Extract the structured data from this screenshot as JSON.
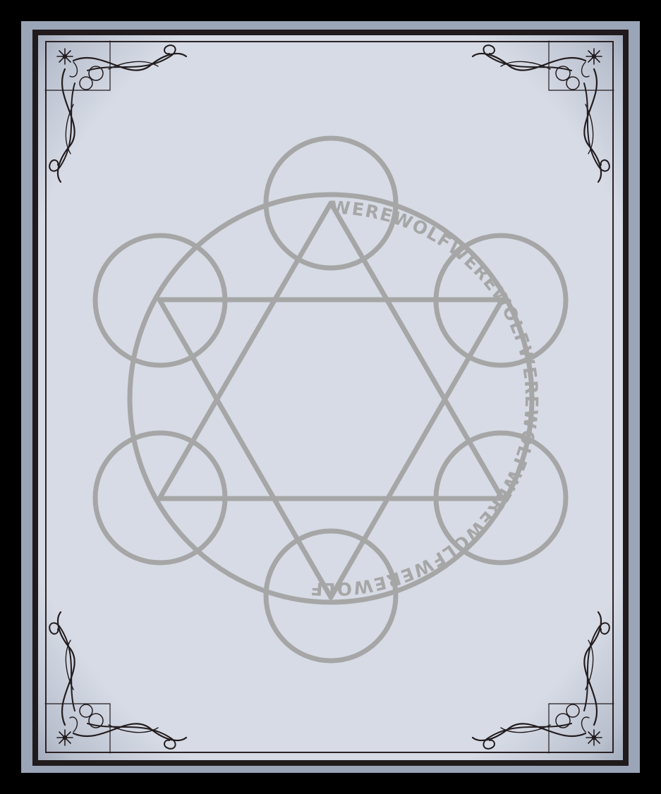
{
  "card": {
    "ring_text": "WEREWOLFWEREWOLFWEREWOLFWEREWOLFWEREWOLF",
    "emblem": "hexagram-magic-circle",
    "corner_ornament": "flourish-ornament-icon"
  },
  "colors": {
    "background": "#000000",
    "card_border": "#9aa5b7",
    "frame": "#201a1c",
    "face": "#d6dbe5",
    "emblem_stroke": "#a6a6a6",
    "ornament": "#231c1e"
  }
}
